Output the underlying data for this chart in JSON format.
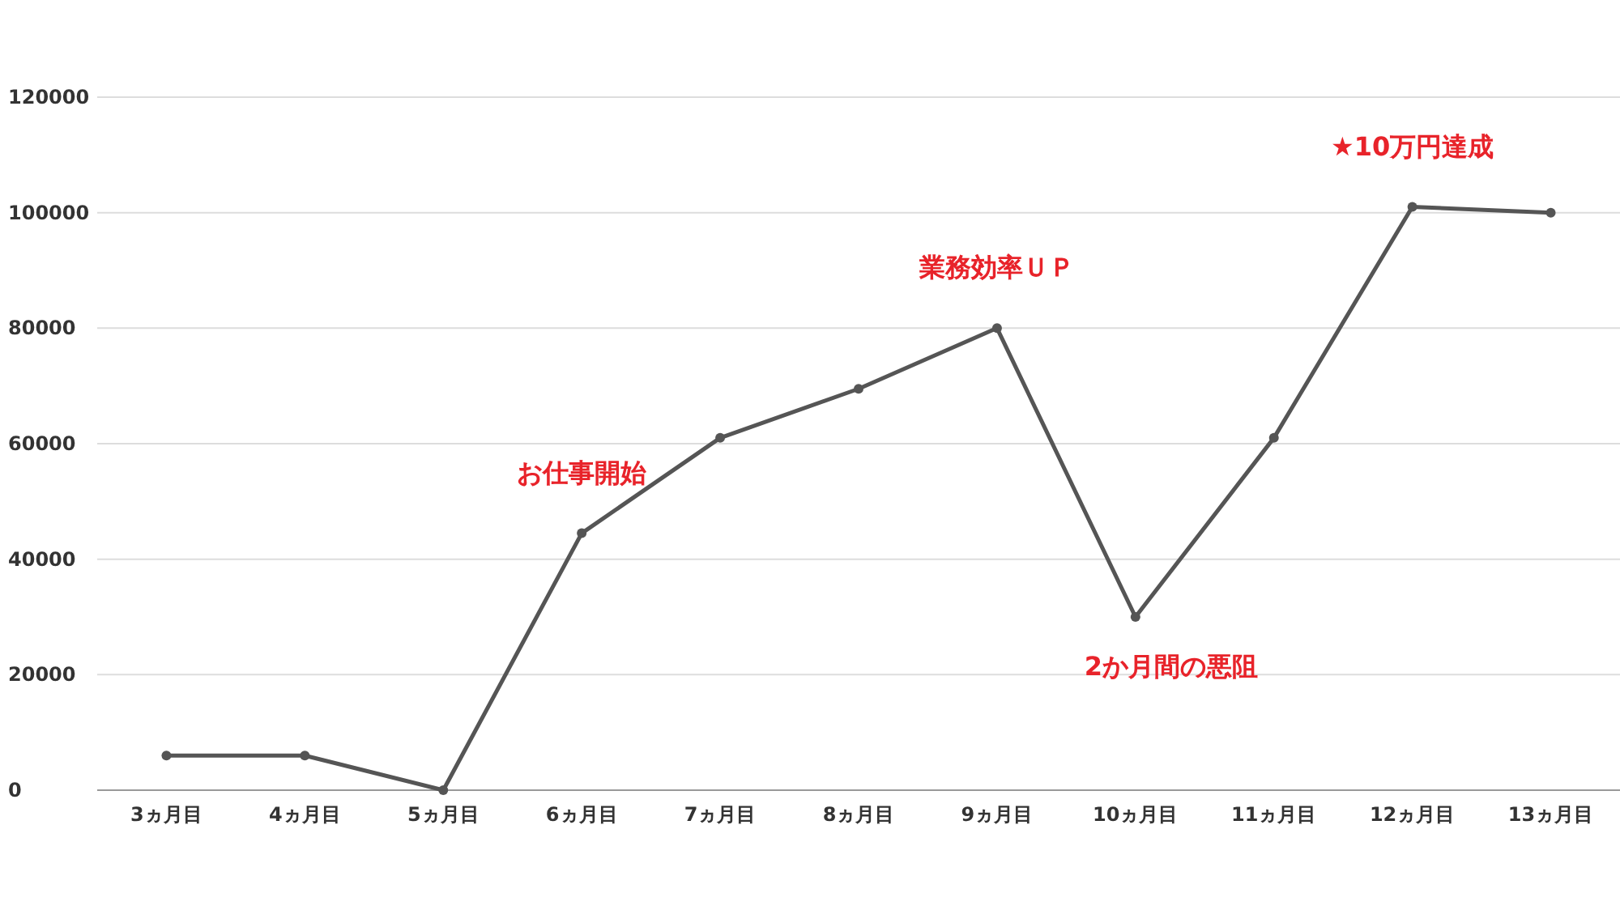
{
  "chart_data": {
    "type": "line",
    "categories": [
      "3ヵ月目",
      "4ヵ月目",
      "5ヵ月目",
      "6ヵ月目",
      "7ヵ月目",
      "8ヵ月目",
      "9ヵ月目",
      "10ヵ月目",
      "11ヵ月目",
      "12ヵ月目",
      "13ヵ月目"
    ],
    "series": [
      {
        "color": "#555555",
        "values": [
          6000,
          6000,
          0,
          44500,
          61000,
          69500,
          80000,
          30000,
          61000,
          101000,
          100000
        ]
      }
    ],
    "ylim": [
      0,
      120000
    ],
    "yticks": [
      0,
      20000,
      40000,
      60000,
      80000,
      100000,
      120000
    ],
    "grid": "y",
    "marker": "circle",
    "line_style": "solid",
    "annotations": [
      {
        "text": "お仕事開始",
        "x": "6ヵ月目",
        "y": 44500
      },
      {
        "text": "業務効率ＵＰ",
        "x": "9ヵ月目",
        "y": 80000
      },
      {
        "text": "2か月間の悪阻",
        "x": "10ヵ月目",
        "y": 30000
      },
      {
        "text": "★10万円達成",
        "x": "12ヵ月目",
        "y": 101000
      }
    ]
  }
}
